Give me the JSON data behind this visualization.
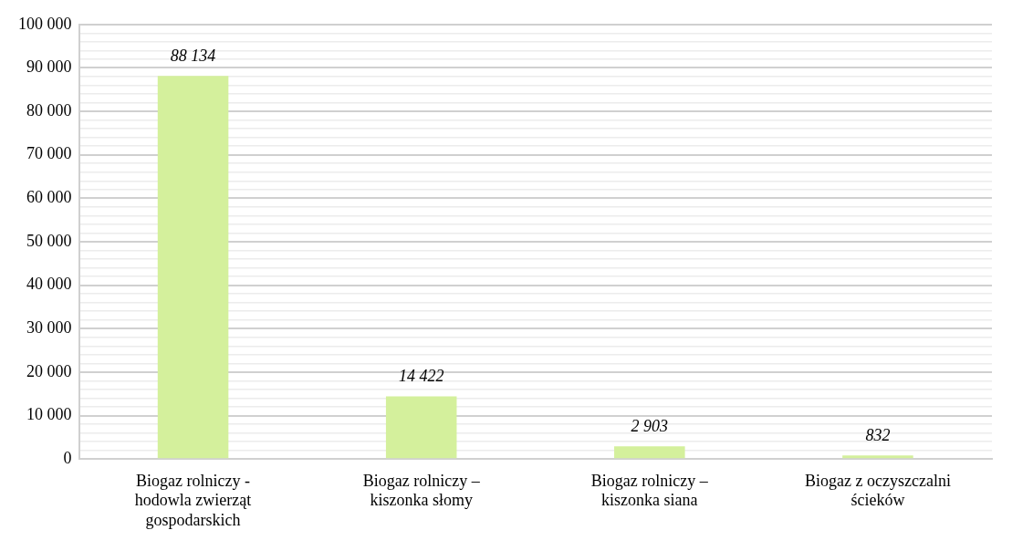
{
  "chart_data": {
    "type": "bar",
    "categories": [
      "Biogaz rolniczy - hodowla zwierząt gospodarskich",
      "Biogaz rolniczy – kiszonka słomy",
      "Biogaz rolniczy – kiszonka siana",
      "Biogaz z oczyszczalni ścieków"
    ],
    "values": [
      88134,
      14422,
      2903,
      832
    ],
    "value_labels": [
      "88 134",
      "14 422",
      "2 903",
      "832"
    ],
    "color": "#d4f09c",
    "ylim": [
      0,
      100000
    ],
    "yticks": [
      {
        "value": 0,
        "label": "0"
      },
      {
        "value": 2000,
        "label": null
      },
      {
        "value": 4000,
        "label": null
      },
      {
        "value": 6000,
        "label": null
      },
      {
        "value": 8000,
        "label": null
      },
      {
        "value": 10000,
        "label": "10 000"
      },
      {
        "value": 12000,
        "label": null
      },
      {
        "value": 14000,
        "label": null
      },
      {
        "value": 16000,
        "label": null
      },
      {
        "value": 18000,
        "label": null
      },
      {
        "value": 20000,
        "label": "20 000"
      },
      {
        "value": 22000,
        "label": null
      },
      {
        "value": 24000,
        "label": null
      },
      {
        "value": 26000,
        "label": null
      },
      {
        "value": 28000,
        "label": null
      },
      {
        "value": 30000,
        "label": "30 000"
      },
      {
        "value": 32000,
        "label": null
      },
      {
        "value": 34000,
        "label": null
      },
      {
        "value": 36000,
        "label": null
      },
      {
        "value": 38000,
        "label": null
      },
      {
        "value": 40000,
        "label": "40 000"
      },
      {
        "value": 42000,
        "label": null
      },
      {
        "value": 44000,
        "label": null
      },
      {
        "value": 46000,
        "label": null
      },
      {
        "value": 48000,
        "label": null
      },
      {
        "value": 50000,
        "label": "50 000"
      },
      {
        "value": 52000,
        "label": null
      },
      {
        "value": 54000,
        "label": null
      },
      {
        "value": 56000,
        "label": null
      },
      {
        "value": 58000,
        "label": null
      },
      {
        "value": 60000,
        "label": "60 000"
      },
      {
        "value": 62000,
        "label": null
      },
      {
        "value": 64000,
        "label": null
      },
      {
        "value": 66000,
        "label": null
      },
      {
        "value": 68000,
        "label": null
      },
      {
        "value": 70000,
        "label": "70 000"
      },
      {
        "value": 72000,
        "label": null
      },
      {
        "value": 74000,
        "label": null
      },
      {
        "value": 76000,
        "label": null
      },
      {
        "value": 78000,
        "label": null
      },
      {
        "value": 80000,
        "label": "80 000"
      },
      {
        "value": 82000,
        "label": null
      },
      {
        "value": 84000,
        "label": null
      },
      {
        "value": 86000,
        "label": null
      },
      {
        "value": 88000,
        "label": null
      },
      {
        "value": 90000,
        "label": "90 000"
      },
      {
        "value": 92000,
        "label": null
      },
      {
        "value": 94000,
        "label": null
      },
      {
        "value": 96000,
        "label": null
      },
      {
        "value": 98000,
        "label": null
      },
      {
        "value": 100000,
        "label": "100 000"
      }
    ],
    "grid": "y"
  }
}
